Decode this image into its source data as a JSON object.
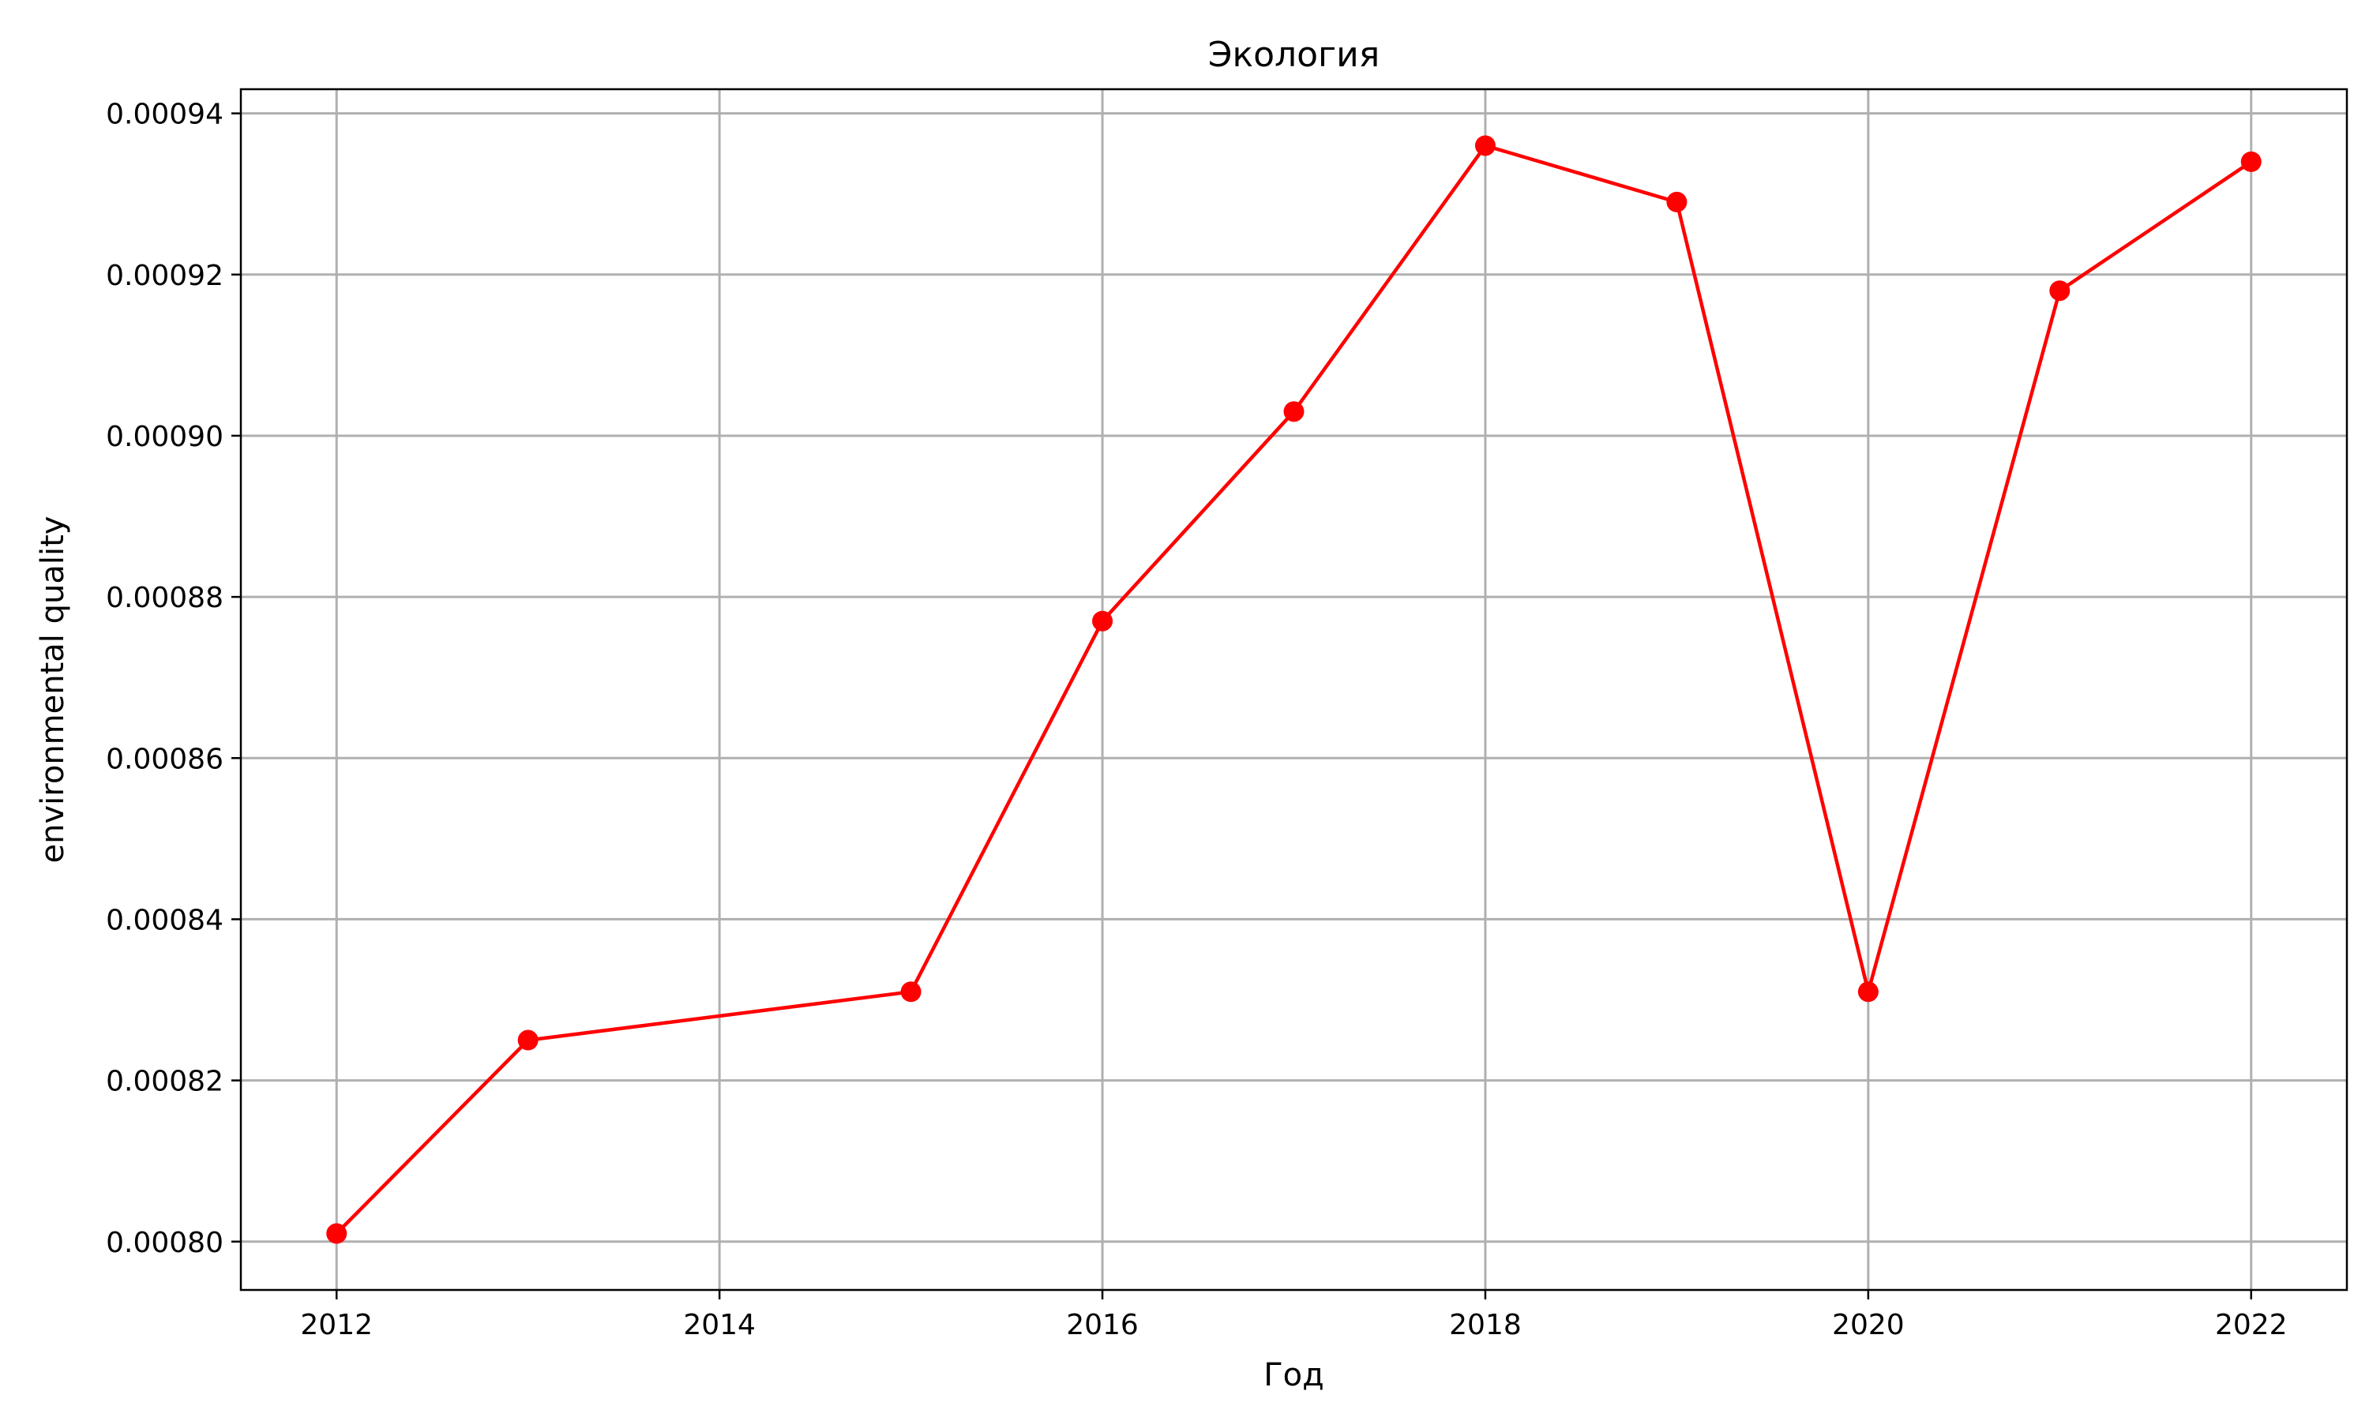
{
  "chart_data": {
    "type": "line",
    "title": "Экология",
    "xlabel": "Год",
    "ylabel": "environmental quality",
    "x": [
      2012,
      2013,
      2015,
      2016,
      2017,
      2018,
      2019,
      2020,
      2021,
      2022
    ],
    "series": [
      {
        "values": [
          0.000801,
          0.000825,
          0.000831,
          0.000877,
          0.000903,
          0.000936,
          0.000929,
          0.000831,
          0.000918,
          0.000934
        ],
        "color": "#ff0000",
        "marker": "circle"
      }
    ],
    "xlim": [
      2011.5,
      2022.5
    ],
    "ylim": [
      0.000794,
      0.000943
    ],
    "xticks": [
      2012,
      2014,
      2016,
      2018,
      2020,
      2022
    ],
    "xtick_labels": [
      "2012",
      "2014",
      "2016",
      "2018",
      "2020",
      "2022"
    ],
    "yticks": [
      0.0008,
      0.00082,
      0.00084,
      0.00086,
      0.00088,
      0.0009,
      0.00092,
      0.00094
    ],
    "ytick_labels": [
      "0.00080",
      "0.00082",
      "0.00084",
      "0.00086",
      "0.00088",
      "0.00090",
      "0.00092",
      "0.00094"
    ],
    "grid": true,
    "legend": "none"
  }
}
